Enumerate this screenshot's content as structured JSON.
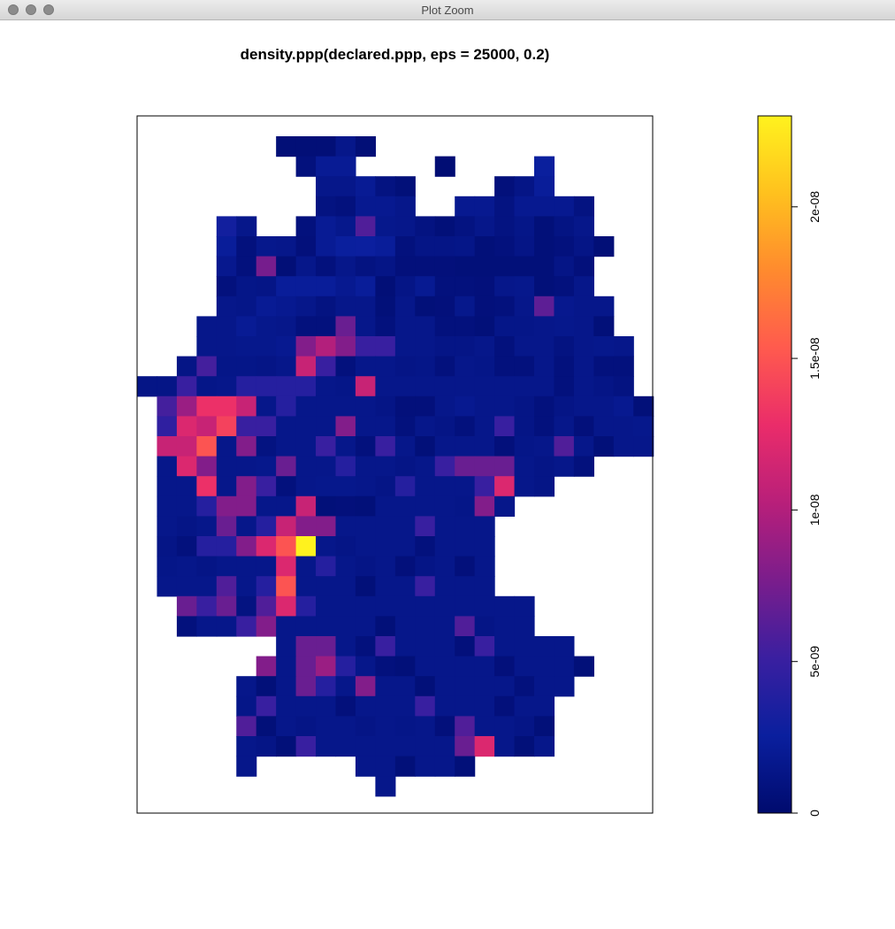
{
  "window": {
    "title": "Plot Zoom"
  },
  "chart_data": {
    "type": "heatmap",
    "title": "density.ppp(declared.ppp, eps = 25000, 0.2)",
    "xlabel": "",
    "ylabel": "",
    "grid": false,
    "legend": {
      "placement": "right",
      "range": [
        0,
        2.3e-08
      ],
      "ticks": [
        {
          "value": 0,
          "label": "0"
        },
        {
          "value": 5e-09,
          "label": "5e-09"
        },
        {
          "value": 1e-08,
          "label": "1e-08"
        },
        {
          "value": 1.5e-08,
          "label": "1.5e-08"
        },
        {
          "value": 2e-08,
          "label": "2e-08"
        }
      ],
      "colormap": [
        "#000b6e",
        "#0a1f9e",
        "#3a1fa0",
        "#7a1d8c",
        "#b81f7a",
        "#ea2c6a",
        "#ff5a4e",
        "#ff8a2e",
        "#ffc11e",
        "#fff21e"
      ]
    },
    "note_levels": "values are density in units of 1e-9 per grid cell; null = outside window",
    "grid_values": [
      [
        null,
        null,
        null,
        null,
        null,
        null,
        null,
        0.5,
        0.5,
        0.5,
        1.5,
        0.5,
        null,
        null,
        null,
        null,
        null,
        null,
        null,
        null,
        null,
        null,
        null,
        null,
        null,
        null
      ],
      [
        null,
        null,
        null,
        null,
        null,
        null,
        null,
        null,
        0.8,
        2,
        2,
        null,
        null,
        null,
        null,
        0.3,
        null,
        null,
        null,
        null,
        2.5,
        null,
        null,
        null,
        null,
        null
      ],
      [
        null,
        null,
        null,
        null,
        null,
        null,
        null,
        null,
        null,
        1.5,
        1.5,
        2,
        1,
        0.6,
        null,
        null,
        null,
        null,
        0.7,
        1.3,
        2.3,
        null,
        null,
        null,
        null,
        null
      ],
      [
        null,
        null,
        null,
        null,
        null,
        null,
        null,
        null,
        null,
        1,
        0.8,
        1.8,
        1.8,
        1.5,
        null,
        null,
        1.8,
        1.8,
        1,
        1.8,
        1.8,
        1.8,
        1,
        null,
        null,
        null
      ],
      [
        null,
        null,
        null,
        null,
        3,
        1.5,
        null,
        null,
        0.8,
        2,
        1.6,
        6,
        1.6,
        1.5,
        1,
        0.6,
        1,
        1.5,
        1,
        1.4,
        0.6,
        1.1,
        1.5,
        null,
        null,
        null
      ],
      [
        null,
        null,
        null,
        null,
        2.3,
        0.8,
        1.6,
        1.5,
        0.7,
        2,
        2.5,
        2.6,
        2.3,
        0.8,
        1.3,
        1.3,
        1.4,
        0.6,
        0.8,
        1.3,
        0.6,
        0.8,
        1.3,
        0.5,
        null,
        null
      ],
      [
        null,
        null,
        null,
        null,
        1.7,
        0.8,
        7.5,
        0.5,
        1.5,
        0.8,
        1.5,
        1,
        1.3,
        0.7,
        0.7,
        0.7,
        0.6,
        0.6,
        0.6,
        0.6,
        0.6,
        1.3,
        0.7,
        null,
        null,
        null
      ],
      [
        null,
        null,
        null,
        null,
        0.8,
        1.4,
        1.3,
        2.3,
        2.3,
        2.3,
        1.8,
        2.3,
        0.5,
        1.3,
        1.9,
        0.8,
        0.8,
        0.7,
        1.5,
        1.6,
        0.6,
        0.8,
        1.5,
        null,
        null,
        null
      ],
      [
        null,
        null,
        null,
        null,
        1.5,
        1.4,
        2,
        1.8,
        1.5,
        1,
        1.5,
        1.5,
        0.6,
        1.5,
        0.6,
        0.7,
        1.6,
        0.7,
        0.8,
        1.5,
        6.5,
        1.7,
        1.5,
        1.5,
        null,
        null
      ],
      [
        null,
        null,
        null,
        1.5,
        1.5,
        2,
        1.6,
        1.5,
        0.8,
        0.8,
        7,
        1.5,
        0.8,
        1.5,
        1.5,
        0.8,
        0.8,
        0.6,
        1.4,
        1.4,
        1.5,
        1.6,
        1.5,
        0.6,
        null,
        null
      ],
      [
        null,
        null,
        null,
        1.5,
        1.5,
        1.6,
        1.6,
        1.8,
        8,
        10,
        8,
        5,
        5,
        1.5,
        1.5,
        1.3,
        1.3,
        1.5,
        0.8,
        1.5,
        1.5,
        1,
        1.5,
        1.6,
        1.5,
        null
      ],
      [
        null,
        null,
        1.3,
        5.5,
        1.4,
        1.4,
        1.3,
        1.5,
        11,
        5,
        0.8,
        1.5,
        1.5,
        1.3,
        1.4,
        0.8,
        1.5,
        1.4,
        0.8,
        0.8,
        1.5,
        0.8,
        1.5,
        0.8,
        0.8,
        null
      ],
      [
        1.3,
        1.3,
        5,
        1.4,
        1.5,
        4,
        4,
        4,
        4,
        1.5,
        1.4,
        11,
        1.5,
        1.5,
        1.5,
        1.5,
        1.5,
        1.5,
        1.5,
        1.5,
        1.5,
        0.8,
        1.5,
        1.3,
        1,
        null
      ],
      [
        null,
        5.5,
        9,
        13,
        13,
        11,
        1.5,
        4,
        1.5,
        1.5,
        1.5,
        1.5,
        1.3,
        0.7,
        0.7,
        1.5,
        1.8,
        1.5,
        1.5,
        1.3,
        0.8,
        1.3,
        1.5,
        1.5,
        1.8,
        0.6
      ],
      [
        null,
        4.5,
        12,
        11,
        14,
        5,
        5,
        1.5,
        1.5,
        1.5,
        8,
        1.5,
        1.5,
        0.8,
        1.5,
        1.3,
        0.8,
        1.5,
        5,
        1.3,
        0.8,
        1.5,
        0.7,
        1.5,
        1.5,
        1.6
      ],
      [
        null,
        11,
        11,
        15,
        1.5,
        8,
        1,
        1.5,
        1.5,
        5,
        1.5,
        0.8,
        5,
        1.5,
        0.6,
        1.5,
        1.5,
        1.5,
        0.7,
        1.4,
        1.5,
        6,
        1.5,
        0.6,
        1.5,
        1.5
      ],
      [
        null,
        1.5,
        12,
        8,
        1.5,
        1.5,
        1.6,
        7,
        1.5,
        1.5,
        4,
        1.5,
        1.5,
        1.3,
        1.5,
        5,
        7,
        7,
        7,
        1.5,
        1.3,
        1.5,
        0.8,
        null,
        null,
        null
      ],
      [
        null,
        1.5,
        1.5,
        13,
        1.5,
        8,
        5,
        0.8,
        1.5,
        1.6,
        1.6,
        1.5,
        1.3,
        4,
        1.5,
        1.5,
        1.5,
        5,
        12,
        1.5,
        1.3,
        null,
        null,
        null,
        null,
        null
      ],
      [
        null,
        1.5,
        1.5,
        4,
        8,
        8,
        1.5,
        1.5,
        11,
        0.6,
        0.7,
        0.6,
        1.5,
        1.5,
        1.5,
        1.5,
        1.4,
        8,
        1.5,
        null,
        null,
        null,
        null,
        null,
        null,
        null
      ],
      [
        null,
        1.5,
        1.3,
        1.5,
        7,
        1.5,
        4,
        11,
        8,
        8,
        1.5,
        1.5,
        1.5,
        1.5,
        5,
        1.5,
        1.5,
        1.5,
        null,
        null,
        null,
        null,
        null,
        null,
        null,
        null
      ],
      [
        null,
        1.3,
        0.8,
        4,
        4,
        8,
        12,
        15,
        23,
        1.5,
        1.3,
        1.5,
        1.5,
        1.5,
        0.8,
        1.5,
        1.5,
        1.5,
        null,
        null,
        null,
        null,
        null,
        null,
        null,
        null
      ],
      [
        null,
        1.4,
        1.5,
        1.3,
        1.5,
        1.5,
        1.5,
        12,
        1.5,
        4,
        1.5,
        1.3,
        1.5,
        0.7,
        1.3,
        1.5,
        0.7,
        1.5,
        null,
        null,
        null,
        null,
        null,
        null,
        null,
        null
      ],
      [
        null,
        1.5,
        1.5,
        1.5,
        6,
        1.5,
        4,
        15,
        1.5,
        1.5,
        1.5,
        0.6,
        1.5,
        1.5,
        5,
        1.5,
        1.5,
        1.5,
        null,
        null,
        null,
        null,
        null,
        null,
        null,
        null
      ],
      [
        null,
        null,
        7,
        5,
        7,
        1,
        6,
        12,
        4,
        1.5,
        1.5,
        1.5,
        1.5,
        1.5,
        1.5,
        1.5,
        1.5,
        1.5,
        1.5,
        1.5,
        null,
        null,
        null,
        null,
        null,
        null
      ],
      [
        null,
        null,
        0.8,
        1.5,
        1.5,
        5,
        8,
        1.5,
        1.5,
        1.5,
        1.5,
        1.5,
        0.6,
        1.5,
        1.5,
        1.5,
        6,
        1.3,
        1.5,
        1.5,
        null,
        null,
        null,
        null,
        null,
        null
      ],
      [
        null,
        null,
        null,
        null,
        null,
        null,
        null,
        1.5,
        7,
        7,
        1.5,
        0.8,
        5,
        1.5,
        1.5,
        1.5,
        0.7,
        5,
        1.5,
        1.5,
        1.5,
        1.5,
        null,
        null,
        null,
        null
      ],
      [
        null,
        null,
        null,
        null,
        null,
        null,
        8,
        1.5,
        7,
        9,
        4,
        1.5,
        0.8,
        0.6,
        1.5,
        1.5,
        1.5,
        1.5,
        0.7,
        1.5,
        1.5,
        1.5,
        0.6,
        null,
        null,
        null
      ],
      [
        null,
        null,
        null,
        null,
        null,
        1.5,
        0.6,
        1.5,
        7,
        4,
        1.5,
        8,
        1.5,
        1.5,
        0.6,
        1.5,
        1.5,
        1.5,
        1.5,
        0.8,
        1.5,
        1.5,
        null,
        null,
        null,
        null
      ],
      [
        null,
        null,
        null,
        null,
        null,
        1.4,
        5,
        1.5,
        1.5,
        1.5,
        0.7,
        1.5,
        1.5,
        1.5,
        5,
        1.5,
        1.5,
        1.5,
        0.7,
        1.5,
        1.5,
        null,
        null,
        null,
        null,
        null
      ],
      [
        null,
        null,
        null,
        null,
        null,
        6,
        0.6,
        1.5,
        1.3,
        1.5,
        1.5,
        1.3,
        1.5,
        1.4,
        1.5,
        0.7,
        6,
        1.5,
        1.5,
        1.3,
        0.6,
        null,
        null,
        null,
        null,
        null
      ],
      [
        null,
        null,
        null,
        null,
        null,
        1.5,
        1.3,
        0.6,
        5,
        1.5,
        1.5,
        1.5,
        1.5,
        1.5,
        1.5,
        1.5,
        7,
        12,
        1.5,
        0.6,
        1.5,
        null,
        null,
        null,
        null,
        null
      ],
      [
        null,
        null,
        null,
        null,
        null,
        1.5,
        null,
        null,
        null,
        null,
        null,
        1.5,
        1.5,
        0.6,
        1.5,
        1.5,
        0.6,
        null,
        null,
        null,
        null,
        null,
        null,
        null,
        null,
        null
      ],
      [
        null,
        null,
        null,
        null,
        null,
        null,
        null,
        null,
        null,
        null,
        null,
        null,
        1.5,
        null,
        null,
        null,
        null,
        null,
        null,
        null,
        null,
        null,
        null,
        null,
        null,
        null
      ]
    ]
  }
}
